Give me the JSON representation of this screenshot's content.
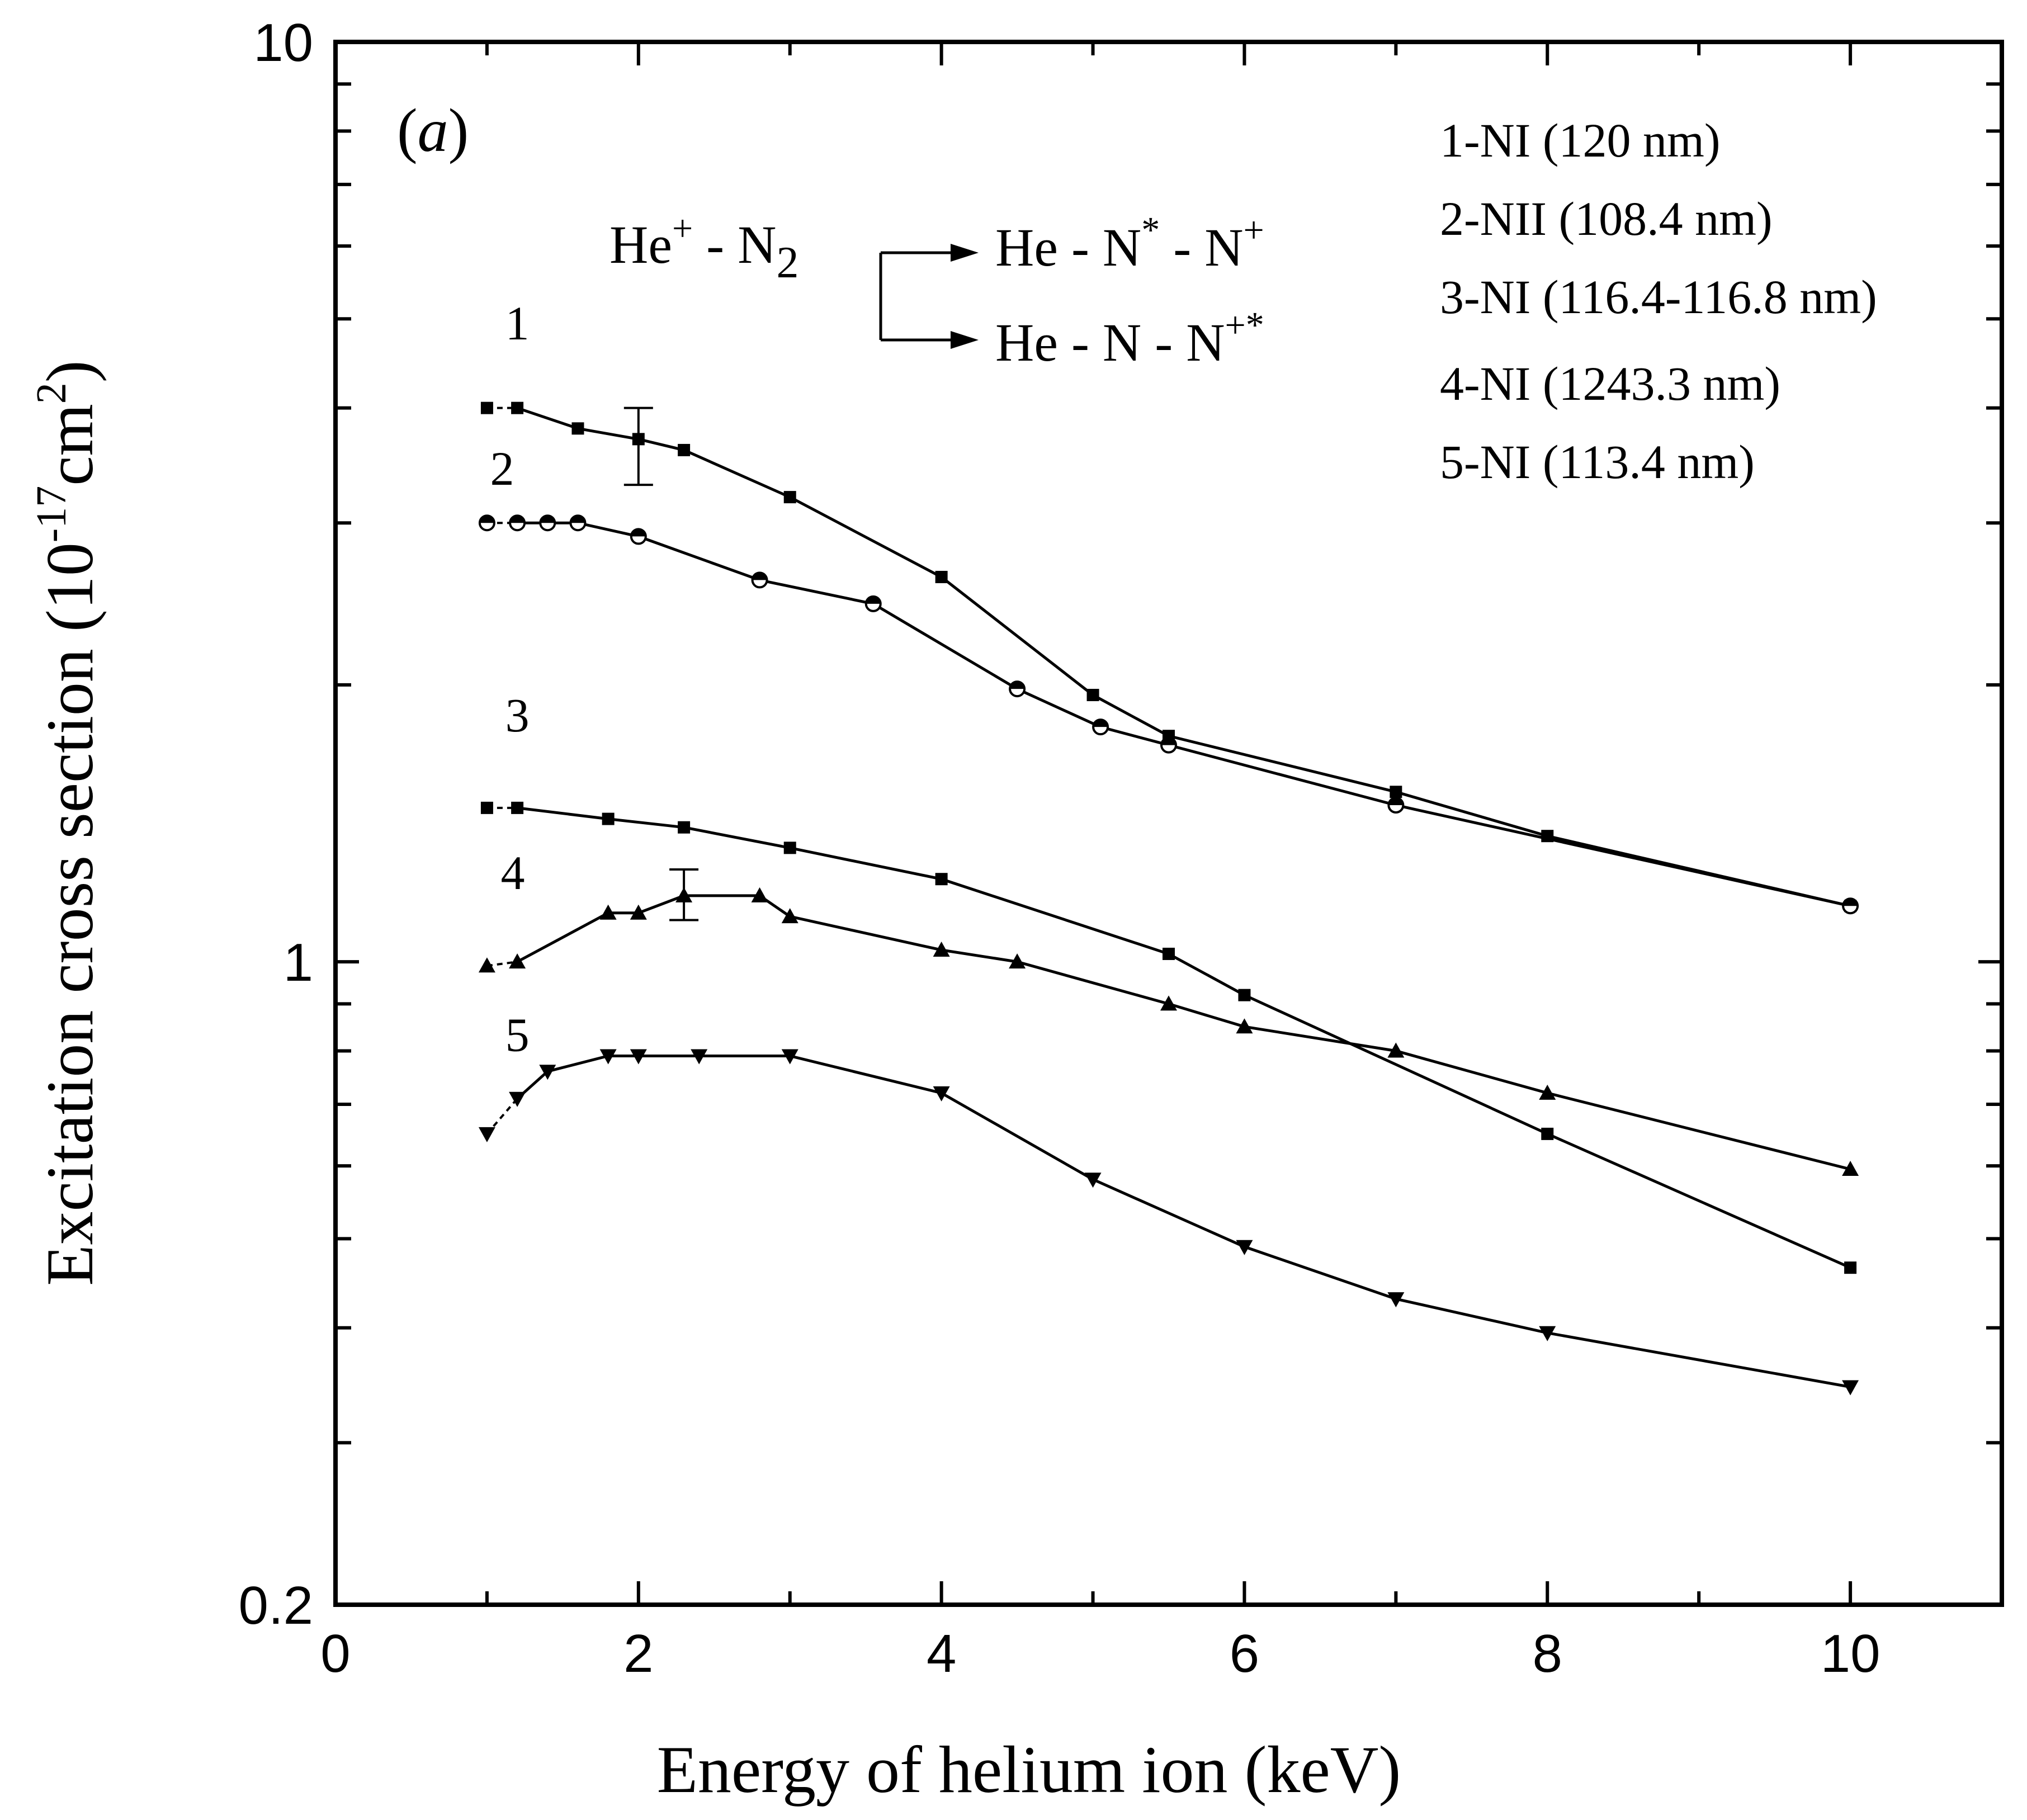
{
  "chart_data": {
    "type": "line",
    "panel_label": "a",
    "xlabel": "Energy of helium ion (keV)",
    "ylabel": "Excitation cross section (10",
    "ylabel_exp": "-17",
    "ylabel_unit": "cm",
    "ylabel_unit_exp": "2",
    "ylabel_close": ")",
    "yscale": "log",
    "xlim": [
      0,
      11
    ],
    "ylim": [
      0.2,
      10
    ],
    "x_ticks": [
      "0",
      "2",
      "4",
      "6",
      "8",
      "10"
    ],
    "y_tick_labels": [
      {
        "value": 0.2,
        "label": "0.2"
      },
      {
        "value": 1,
        "label": "1"
      },
      {
        "value": 10,
        "label": "10"
      }
    ],
    "reaction": {
      "reactant": "He",
      "reactant_sup": "+",
      "sep": " - ",
      "target": "N",
      "target_sub": "2",
      "channel1": [
        "He - N",
        "*",
        " - N",
        "+"
      ],
      "channel2": [
        "He - N - N",
        "+*"
      ]
    },
    "series": [
      {
        "id": "1",
        "name": "1-NI (120 nm)",
        "marker": "square",
        "x": [
          1.0,
          1.2,
          1.6,
          2.0,
          2.3,
          3.0,
          4.0,
          5.0,
          5.5,
          7.0,
          8.0,
          10.0
        ],
        "y": [
          4.0,
          4.0,
          3.8,
          3.7,
          3.6,
          3.2,
          2.62,
          1.95,
          1.76,
          1.53,
          1.37,
          1.15
        ],
        "error_bar": {
          "x": 2.0,
          "low": 3.3,
          "high": 4.0
        },
        "label_at": [
          1.2,
          4.75
        ]
      },
      {
        "id": "2",
        "name": "2-NII (108.4 nm)",
        "marker": "circle-half",
        "x": [
          1.0,
          1.2,
          1.4,
          1.6,
          2.0,
          2.8,
          3.55,
          4.5,
          5.05,
          5.5,
          7.0,
          10.0
        ],
        "y": [
          3.0,
          3.0,
          3.0,
          3.0,
          2.9,
          2.6,
          2.45,
          1.98,
          1.8,
          1.72,
          1.48,
          1.15
        ],
        "label_at": [
          1.1,
          3.3
        ]
      },
      {
        "id": "3",
        "name": "3-NI (116.4-116.8 nm)",
        "marker": "square",
        "x": [
          1.0,
          1.2,
          1.8,
          2.3,
          3.0,
          4.0,
          5.5,
          6.0,
          8.0,
          10.0
        ],
        "y": [
          1.47,
          1.47,
          1.43,
          1.4,
          1.33,
          1.23,
          1.02,
          0.92,
          0.65,
          0.465
        ],
        "label_at": [
          1.2,
          1.78
        ]
      },
      {
        "id": "4",
        "name": "4-NI (1243.3 nm)",
        "marker": "triangle-up",
        "x": [
          1.0,
          1.2,
          1.8,
          2.0,
          2.3,
          2.8,
          3.0,
          4.0,
          4.5,
          5.5,
          6.0,
          7.0,
          8.0,
          10.0
        ],
        "y": [
          0.99,
          1.0,
          1.13,
          1.13,
          1.18,
          1.18,
          1.12,
          1.03,
          1.0,
          0.9,
          0.85,
          0.8,
          0.72,
          0.595
        ],
        "error_bar": {
          "x": 2.3,
          "low": 1.11,
          "high": 1.26
        },
        "label_at": [
          1.17,
          1.2
        ]
      },
      {
        "id": "5",
        "name": "5-NI (113.4 nm)",
        "marker": "triangle-down",
        "x": [
          1.0,
          1.2,
          1.4,
          1.8,
          2.0,
          2.4,
          3.0,
          4.0,
          5.0,
          6.0,
          7.0,
          8.0,
          10.0
        ],
        "y": [
          0.65,
          0.71,
          0.76,
          0.79,
          0.79,
          0.79,
          0.79,
          0.72,
          0.58,
          0.49,
          0.43,
          0.395,
          0.345
        ],
        "label_at": [
          1.2,
          0.8
        ]
      }
    ]
  }
}
